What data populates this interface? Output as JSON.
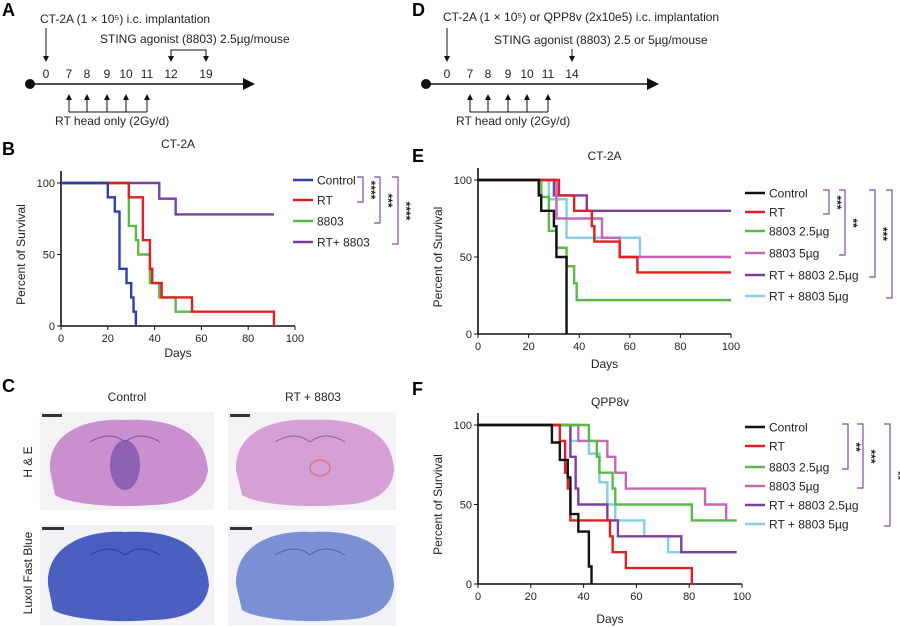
{
  "panels": {
    "A": {
      "label": "A",
      "implant": "CT-2A (1 × 10⁵)  i.c. implantation",
      "agonist": "STING agonist (8803) 2.5µg/mouse",
      "days": [
        "0",
        "7",
        "8",
        "9",
        "10",
        "11",
        "12",
        "19"
      ],
      "rt": "RT head only (2Gy/d)"
    },
    "B": {
      "label": "B"
    },
    "C": {
      "label": "C",
      "col1": "Control",
      "col2": "RT + 8803",
      "row1": "H & E",
      "row2": "Luxol Fast Blue"
    },
    "D": {
      "label": "D",
      "implant": "CT-2A (1 × 10⁵)  or QPP8v (2x10e5) i.c. implantation",
      "agonist": "STING agonist (8803) 2.5 or 5µg/mouse",
      "days": [
        "0",
        "7",
        "8",
        "9",
        "10",
        "11",
        "14"
      ],
      "rt": "RT head only (2Gy/d)"
    },
    "E": {
      "label": "E"
    },
    "F": {
      "label": "F"
    }
  },
  "colors": {
    "control_B": "#2e3fb0",
    "control": "#111111",
    "rt": "#e01f25",
    "g8803": "#5bb947",
    "g8803_5": "#c766b8",
    "rt8803": "#7d3f9e",
    "rt8803_5": "#86cde6",
    "bracket": "#7d4f9e"
  },
  "chart_data": [
    {
      "id": "B",
      "type": "line",
      "subtype": "kaplan-meier step",
      "title": "CT-2A",
      "xlabel": "Days",
      "ylabel": "Percent of Survival",
      "xlim": [
        0,
        100
      ],
      "ylim": [
        0,
        100
      ],
      "xticks": [
        "0",
        "20",
        "40",
        "60",
        "80",
        "100"
      ],
      "yticks": [
        "0",
        "50",
        "100"
      ],
      "legend": "right",
      "series": [
        {
          "name": "Control",
          "color": "#2e3fb0",
          "points": [
            [
              0,
              100
            ],
            [
              20,
              90
            ],
            [
              23,
              80
            ],
            [
              25,
              40
            ],
            [
              28,
              30
            ],
            [
              30,
              20
            ],
            [
              31,
              10
            ],
            [
              32,
              0
            ]
          ]
        },
        {
          "name": "RT",
          "color": "#e01f25",
          "points": [
            [
              0,
              100
            ],
            [
              29,
              90
            ],
            [
              35,
              60
            ],
            [
              38,
              40
            ],
            [
              39,
              30
            ],
            [
              43,
              20
            ],
            [
              56,
              10
            ],
            [
              91,
              0
            ]
          ]
        },
        {
          "name": "8803",
          "color": "#5bb947",
          "points": [
            [
              0,
              100
            ],
            [
              29,
              70
            ],
            [
              32,
              60
            ],
            [
              33,
              50
            ],
            [
              38,
              30
            ],
            [
              42,
              20
            ],
            [
              49,
              10
            ],
            [
              56,
              10
            ]
          ]
        },
        {
          "name": "RT+ 8803",
          "color": "#7d3f9e",
          "points": [
            [
              0,
              100
            ],
            [
              42,
              89
            ],
            [
              49,
              78
            ],
            [
              91,
              78
            ]
          ]
        }
      ],
      "significance": [
        {
          "from": "Control",
          "to": "RT",
          "stars": "****"
        },
        {
          "from": "Control",
          "to": "8803",
          "stars": "***"
        },
        {
          "from": "Control",
          "to": "RT+ 8803",
          "stars": "****"
        }
      ]
    },
    {
      "id": "E",
      "type": "line",
      "subtype": "kaplan-meier step",
      "title": "CT-2A",
      "xlabel": "Days",
      "ylabel": "Percent of Survival",
      "xlim": [
        0,
        100
      ],
      "ylim": [
        0,
        100
      ],
      "xticks": [
        "0",
        "20",
        "40",
        "60",
        "80",
        "100"
      ],
      "yticks": [
        "0",
        "50",
        "100"
      ],
      "legend": "right",
      "series": [
        {
          "name": "Control",
          "color": "#111111",
          "points": [
            [
              0,
              100
            ],
            [
              24,
              90
            ],
            [
              25,
              80
            ],
            [
              30,
              70
            ],
            [
              31,
              50
            ],
            [
              35,
              0
            ]
          ]
        },
        {
          "name": "RT",
          "color": "#e01f25",
          "points": [
            [
              0,
              100
            ],
            [
              32,
              90
            ],
            [
              38,
              80
            ],
            [
              45,
              70
            ],
            [
              46,
              60
            ],
            [
              56,
              50
            ],
            [
              63,
              40
            ],
            [
              100,
              40
            ]
          ]
        },
        {
          "name": "8803 2.5µg",
          "color": "#5bb947",
          "points": [
            [
              0,
              100
            ],
            [
              25,
              89
            ],
            [
              28,
              67
            ],
            [
              31,
              56
            ],
            [
              35,
              44
            ],
            [
              38,
              33
            ],
            [
              39,
              22
            ],
            [
              100,
              22
            ]
          ]
        },
        {
          "name": "8803 5µg",
          "color": "#c766b8",
          "points": [
            [
              0,
              100
            ],
            [
              31,
              75
            ],
            [
              49,
              62.5
            ],
            [
              56,
              50
            ],
            [
              100,
              50
            ]
          ]
        },
        {
          "name": "RT + 8803 2.5µg",
          "color": "#7d3f9e",
          "points": [
            [
              0,
              100
            ],
            [
              30,
              90
            ],
            [
              43,
              80
            ],
            [
              100,
              80
            ]
          ]
        },
        {
          "name": "RT + 8803 5µg",
          "color": "#86cde6",
          "points": [
            [
              0,
              100
            ],
            [
              28,
              87.5
            ],
            [
              35,
              62.5
            ],
            [
              64,
              50
            ],
            [
              100,
              50
            ]
          ]
        }
      ],
      "significance": [
        {
          "from": "Control",
          "to": "RT",
          "stars": "***"
        },
        {
          "from": "Control",
          "to": "8803 5µg",
          "stars": "**"
        },
        {
          "from": "Control",
          "to": "RT + 8803 2.5µg",
          "stars": "***"
        },
        {
          "from": "Control",
          "to": "RT + 8803 5µg",
          "stars": "**"
        }
      ]
    },
    {
      "id": "F",
      "type": "line",
      "subtype": "kaplan-meier step",
      "title": "QPP8v",
      "xlabel": "Days",
      "ylabel": "Percent of Survival",
      "xlim": [
        0,
        100
      ],
      "ylim": [
        0,
        100
      ],
      "xticks": [
        "0",
        "20",
        "40",
        "60",
        "80",
        "100"
      ],
      "yticks": [
        "0",
        "50",
        "100"
      ],
      "legend": "right",
      "series": [
        {
          "name": "Control",
          "color": "#111111",
          "points": [
            [
              0,
              100
            ],
            [
              28,
              89
            ],
            [
              31,
              78
            ],
            [
              34,
              67
            ],
            [
              35,
              44
            ],
            [
              38,
              33
            ],
            [
              42,
              11
            ],
            [
              43,
              0
            ]
          ]
        },
        {
          "name": "RT",
          "color": "#e01f25",
          "points": [
            [
              0,
              100
            ],
            [
              31,
              90
            ],
            [
              33,
              70
            ],
            [
              34,
              60
            ],
            [
              35,
              40
            ],
            [
              50,
              30
            ],
            [
              51,
              20
            ],
            [
              56,
              10
            ],
            [
              81,
              0
            ]
          ]
        },
        {
          "name": "8803 2.5µg",
          "color": "#5bb947",
          "points": [
            [
              0,
              100
            ],
            [
              42,
              90
            ],
            [
              45,
              80
            ],
            [
              46,
              70
            ],
            [
              51,
              60
            ],
            [
              52,
              50
            ],
            [
              81,
              40
            ],
            [
              98,
              40
            ]
          ]
        },
        {
          "name": "8803 5µg",
          "color": "#c766b8",
          "points": [
            [
              0,
              100
            ],
            [
              38,
              90
            ],
            [
              49,
              80
            ],
            [
              52,
              70
            ],
            [
              56,
              60
            ],
            [
              86,
              50
            ],
            [
              94,
              40
            ]
          ]
        },
        {
          "name": "RT + 8803 2.5µg",
          "color": "#7d3f9e",
          "points": [
            [
              0,
              100
            ],
            [
              35,
              80
            ],
            [
              37,
              60
            ],
            [
              38,
              50
            ],
            [
              49,
              40
            ],
            [
              53,
              30
            ],
            [
              77,
              20
            ],
            [
              98,
              20
            ]
          ]
        },
        {
          "name": "RT + 8803 5µg",
          "color": "#86cde6",
          "points": [
            [
              0,
              100
            ],
            [
              35,
              90
            ],
            [
              42,
              82
            ],
            [
              46,
              64
            ],
            [
              49,
              50
            ],
            [
              52,
              40
            ],
            [
              63,
              30
            ],
            [
              72,
              20
            ],
            [
              77,
              20
            ]
          ]
        }
      ],
      "significance": [
        {
          "from": "Control",
          "to": "8803 2.5µg",
          "stars": "**"
        },
        {
          "from": "Control",
          "to": "8803 5µg",
          "stars": "***"
        },
        {
          "from": "Control",
          "to": "RT + 8803 5µg",
          "stars": "**"
        }
      ]
    }
  ]
}
